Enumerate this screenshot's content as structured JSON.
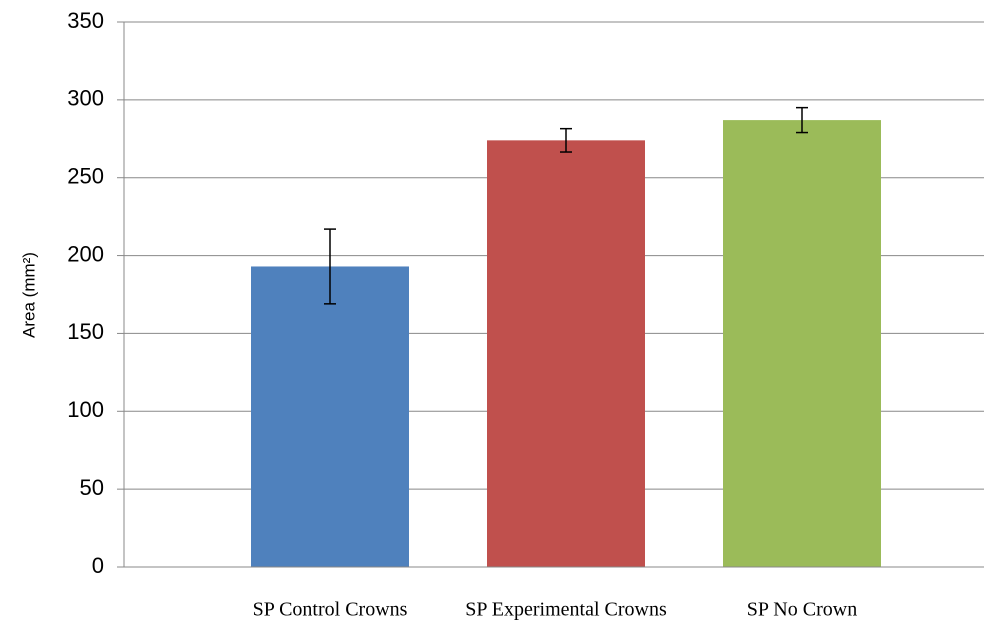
{
  "chart_data": {
    "type": "bar",
    "y_label": "Area (mm²)",
    "categories": [
      "SP Control Crowns",
      "SP Experimental Crowns",
      "SP No Crown"
    ],
    "values": [
      193,
      274,
      287
    ],
    "errors": [
      24,
      7.5,
      8
    ],
    "colors": [
      "#4f81bd",
      "#c0504d",
      "#9bbb59"
    ],
    "ylim": [
      0,
      350
    ],
    "yticks": [
      0,
      50,
      100,
      150,
      200,
      250,
      300,
      350
    ],
    "grid": true
  }
}
